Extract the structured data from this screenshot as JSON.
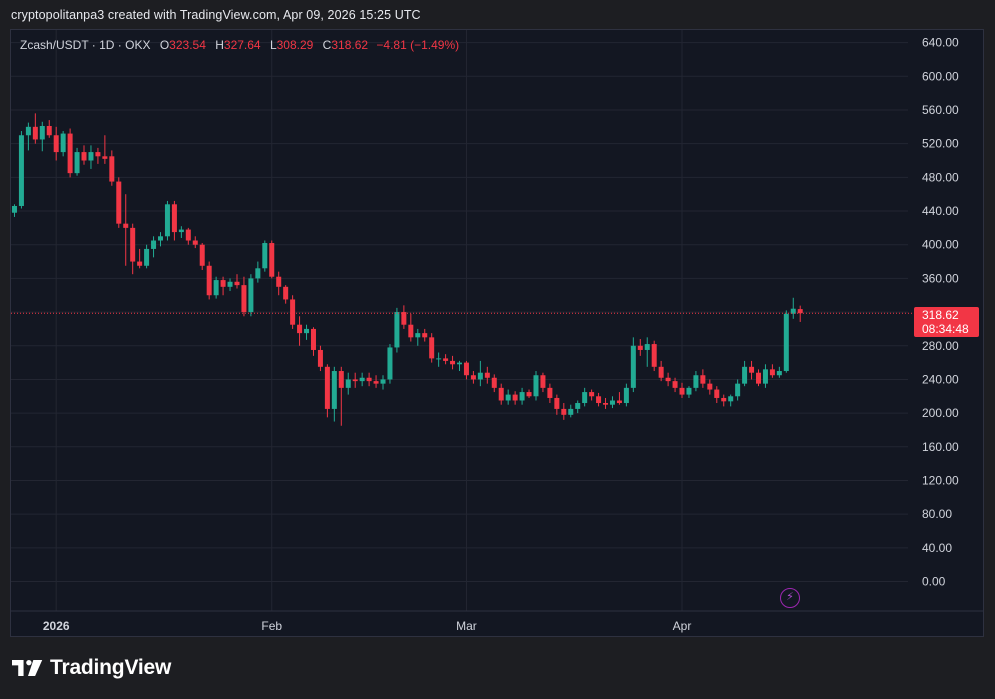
{
  "header": {
    "text": "cryptopolitanpa3 created with TradingView.com, Apr 09, 2026 15:25 UTC"
  },
  "legend": {
    "symbol": "Zcash/USDT · 1D · OKX",
    "open_label": "O",
    "open": "323.54",
    "high_label": "H",
    "high": "327.64",
    "low_label": "L",
    "low": "308.29",
    "close_label": "C",
    "close": "318.62",
    "change": "−4.81 (−1.49%)"
  },
  "price_tag": {
    "price": "318.62",
    "countdown": "08:34:48"
  },
  "brand": {
    "name": "TradingView"
  },
  "colors": {
    "up": "#22ab94",
    "down": "#f23645",
    "grid": "#232632",
    "background": "#131722"
  },
  "icons": {
    "alert": "lightning-bolt-icon",
    "logo": "tradingview-logo-icon"
  },
  "chart_data": {
    "type": "candlestick",
    "title": "Zcash/USDT · 1D · OKX",
    "x_tick_labels": [
      "2026",
      "Feb",
      "Mar",
      "Apr"
    ],
    "x_tick_dates": [
      "2026-01-01",
      "2026-02-01",
      "2026-03-01",
      "2026-04-01"
    ],
    "y_ticks": [
      0,
      40,
      80,
      120,
      160,
      200,
      240,
      280,
      320,
      360,
      400,
      440,
      480,
      520,
      560,
      600,
      640
    ],
    "y_tick_labels": [
      "0.00",
      "40.00",
      "80.00",
      "120.00",
      "160.00",
      "200.00",
      "240.00",
      "280.00",
      "320.00",
      "360.00",
      "400.00",
      "440.00",
      "480.00",
      "520.00",
      "560.00",
      "600.00",
      "640.00"
    ],
    "ylim": [
      -35,
      655
    ],
    "xlim": [
      "2025-12-26",
      "2026-05-03"
    ],
    "last_price": 318.62,
    "grid": true,
    "candles": [
      {
        "date": "2025-12-26",
        "o": 438,
        "h": 448,
        "l": 433,
        "c": 446
      },
      {
        "date": "2025-12-27",
        "o": 446,
        "h": 535,
        "l": 443,
        "c": 530
      },
      {
        "date": "2025-12-28",
        "o": 530,
        "h": 545,
        "l": 512,
        "c": 540
      },
      {
        "date": "2025-12-29",
        "o": 540,
        "h": 556,
        "l": 520,
        "c": 525
      },
      {
        "date": "2025-12-30",
        "o": 525,
        "h": 546,
        "l": 511,
        "c": 541
      },
      {
        "date": "2025-12-31",
        "o": 541,
        "h": 548,
        "l": 527,
        "c": 530
      },
      {
        "date": "2026-01-01",
        "o": 530,
        "h": 540,
        "l": 500,
        "c": 510
      },
      {
        "date": "2026-01-02",
        "o": 510,
        "h": 535,
        "l": 505,
        "c": 532
      },
      {
        "date": "2026-01-03",
        "o": 532,
        "h": 538,
        "l": 480,
        "c": 485
      },
      {
        "date": "2026-01-04",
        "o": 485,
        "h": 515,
        "l": 482,
        "c": 510
      },
      {
        "date": "2026-01-05",
        "o": 510,
        "h": 518,
        "l": 495,
        "c": 500
      },
      {
        "date": "2026-01-06",
        "o": 500,
        "h": 518,
        "l": 490,
        "c": 510
      },
      {
        "date": "2026-01-07",
        "o": 510,
        "h": 515,
        "l": 496,
        "c": 505
      },
      {
        "date": "2026-01-08",
        "o": 505,
        "h": 530,
        "l": 496,
        "c": 502
      },
      {
        "date": "2026-01-09",
        "o": 505,
        "h": 512,
        "l": 470,
        "c": 475
      },
      {
        "date": "2026-01-10",
        "o": 475,
        "h": 480,
        "l": 420,
        "c": 425
      },
      {
        "date": "2026-01-11",
        "o": 425,
        "h": 460,
        "l": 375,
        "c": 420
      },
      {
        "date": "2026-01-12",
        "o": 420,
        "h": 425,
        "l": 365,
        "c": 380
      },
      {
        "date": "2026-01-13",
        "o": 380,
        "h": 395,
        "l": 372,
        "c": 375
      },
      {
        "date": "2026-01-14",
        "o": 375,
        "h": 400,
        "l": 372,
        "c": 395
      },
      {
        "date": "2026-01-15",
        "o": 395,
        "h": 410,
        "l": 385,
        "c": 405
      },
      {
        "date": "2026-01-16",
        "o": 405,
        "h": 415,
        "l": 398,
        "c": 410
      },
      {
        "date": "2026-01-17",
        "o": 410,
        "h": 452,
        "l": 405,
        "c": 448
      },
      {
        "date": "2026-01-18",
        "o": 448,
        "h": 452,
        "l": 405,
        "c": 415
      },
      {
        "date": "2026-01-19",
        "o": 415,
        "h": 422,
        "l": 408,
        "c": 418
      },
      {
        "date": "2026-01-20",
        "o": 418,
        "h": 420,
        "l": 400,
        "c": 405
      },
      {
        "date": "2026-01-21",
        "o": 405,
        "h": 410,
        "l": 396,
        "c": 400
      },
      {
        "date": "2026-01-22",
        "o": 400,
        "h": 402,
        "l": 370,
        "c": 375
      },
      {
        "date": "2026-01-23",
        "o": 375,
        "h": 380,
        "l": 335,
        "c": 340
      },
      {
        "date": "2026-01-24",
        "o": 340,
        "h": 362,
        "l": 336,
        "c": 358
      },
      {
        "date": "2026-01-25",
        "o": 358,
        "h": 362,
        "l": 340,
        "c": 350
      },
      {
        "date": "2026-01-26",
        "o": 350,
        "h": 360,
        "l": 345,
        "c": 356
      },
      {
        "date": "2026-01-27",
        "o": 356,
        "h": 365,
        "l": 348,
        "c": 352
      },
      {
        "date": "2026-01-28",
        "o": 352,
        "h": 362,
        "l": 315,
        "c": 320
      },
      {
        "date": "2026-01-29",
        "o": 320,
        "h": 365,
        "l": 315,
        "c": 360
      },
      {
        "date": "2026-01-30",
        "o": 360,
        "h": 380,
        "l": 355,
        "c": 372
      },
      {
        "date": "2026-01-31",
        "o": 372,
        "h": 405,
        "l": 368,
        "c": 402
      },
      {
        "date": "2026-02-01",
        "o": 402,
        "h": 405,
        "l": 360,
        "c": 362
      },
      {
        "date": "2026-02-02",
        "o": 362,
        "h": 368,
        "l": 340,
        "c": 350
      },
      {
        "date": "2026-02-03",
        "o": 350,
        "h": 352,
        "l": 330,
        "c": 335
      },
      {
        "date": "2026-02-04",
        "o": 335,
        "h": 340,
        "l": 300,
        "c": 305
      },
      {
        "date": "2026-02-05",
        "o": 305,
        "h": 315,
        "l": 280,
        "c": 295
      },
      {
        "date": "2026-02-06",
        "o": 295,
        "h": 305,
        "l": 287,
        "c": 300
      },
      {
        "date": "2026-02-07",
        "o": 300,
        "h": 302,
        "l": 268,
        "c": 275
      },
      {
        "date": "2026-02-08",
        "o": 275,
        "h": 280,
        "l": 250,
        "c": 255
      },
      {
        "date": "2026-02-09",
        "o": 255,
        "h": 258,
        "l": 195,
        "c": 205
      },
      {
        "date": "2026-02-10",
        "o": 205,
        "h": 255,
        "l": 190,
        "c": 250
      },
      {
        "date": "2026-02-11",
        "o": 250,
        "h": 255,
        "l": 185,
        "c": 230
      },
      {
        "date": "2026-02-12",
        "o": 230,
        "h": 248,
        "l": 222,
        "c": 240
      },
      {
        "date": "2026-02-13",
        "o": 240,
        "h": 248,
        "l": 230,
        "c": 238
      },
      {
        "date": "2026-02-14",
        "o": 238,
        "h": 248,
        "l": 232,
        "c": 242
      },
      {
        "date": "2026-02-15",
        "o": 242,
        "h": 248,
        "l": 232,
        "c": 238
      },
      {
        "date": "2026-02-16",
        "o": 238,
        "h": 245,
        "l": 230,
        "c": 235
      },
      {
        "date": "2026-02-17",
        "o": 235,
        "h": 245,
        "l": 228,
        "c": 240
      },
      {
        "date": "2026-02-18",
        "o": 240,
        "h": 282,
        "l": 235,
        "c": 278
      },
      {
        "date": "2026-02-19",
        "o": 278,
        "h": 325,
        "l": 272,
        "c": 320
      },
      {
        "date": "2026-02-20",
        "o": 320,
        "h": 328,
        "l": 300,
        "c": 305
      },
      {
        "date": "2026-02-21",
        "o": 305,
        "h": 318,
        "l": 285,
        "c": 290
      },
      {
        "date": "2026-02-22",
        "o": 290,
        "h": 300,
        "l": 280,
        "c": 295
      },
      {
        "date": "2026-02-23",
        "o": 295,
        "h": 300,
        "l": 285,
        "c": 290
      },
      {
        "date": "2026-02-24",
        "o": 290,
        "h": 295,
        "l": 260,
        "c": 265
      },
      {
        "date": "2026-02-25",
        "o": 265,
        "h": 272,
        "l": 255,
        "c": 265
      },
      {
        "date": "2026-02-26",
        "o": 265,
        "h": 270,
        "l": 258,
        "c": 262
      },
      {
        "date": "2026-02-27",
        "o": 262,
        "h": 268,
        "l": 252,
        "c": 258
      },
      {
        "date": "2026-02-28",
        "o": 258,
        "h": 262,
        "l": 250,
        "c": 260
      },
      {
        "date": "2026-03-01",
        "o": 260,
        "h": 262,
        "l": 240,
        "c": 245
      },
      {
        "date": "2026-03-02",
        "o": 245,
        "h": 250,
        "l": 235,
        "c": 240
      },
      {
        "date": "2026-03-03",
        "o": 240,
        "h": 262,
        "l": 232,
        "c": 248
      },
      {
        "date": "2026-03-04",
        "o": 248,
        "h": 255,
        "l": 235,
        "c": 242
      },
      {
        "date": "2026-03-05",
        "o": 242,
        "h": 246,
        "l": 225,
        "c": 230
      },
      {
        "date": "2026-03-06",
        "o": 230,
        "h": 235,
        "l": 210,
        "c": 215
      },
      {
        "date": "2026-03-07",
        "o": 215,
        "h": 228,
        "l": 210,
        "c": 222
      },
      {
        "date": "2026-03-08",
        "o": 222,
        "h": 226,
        "l": 210,
        "c": 215
      },
      {
        "date": "2026-03-09",
        "o": 215,
        "h": 230,
        "l": 210,
        "c": 225
      },
      {
        "date": "2026-03-10",
        "o": 225,
        "h": 228,
        "l": 218,
        "c": 220
      },
      {
        "date": "2026-03-11",
        "o": 220,
        "h": 250,
        "l": 215,
        "c": 245
      },
      {
        "date": "2026-03-12",
        "o": 245,
        "h": 248,
        "l": 225,
        "c": 230
      },
      {
        "date": "2026-03-13",
        "o": 230,
        "h": 235,
        "l": 212,
        "c": 218
      },
      {
        "date": "2026-03-14",
        "o": 218,
        "h": 222,
        "l": 198,
        "c": 205
      },
      {
        "date": "2026-03-15",
        "o": 205,
        "h": 212,
        "l": 192,
        "c": 198
      },
      {
        "date": "2026-03-16",
        "o": 198,
        "h": 210,
        "l": 195,
        "c": 205
      },
      {
        "date": "2026-03-17",
        "o": 205,
        "h": 215,
        "l": 200,
        "c": 212
      },
      {
        "date": "2026-03-18",
        "o": 212,
        "h": 230,
        "l": 208,
        "c": 225
      },
      {
        "date": "2026-03-19",
        "o": 225,
        "h": 228,
        "l": 215,
        "c": 220
      },
      {
        "date": "2026-03-20",
        "o": 220,
        "h": 224,
        "l": 208,
        "c": 212
      },
      {
        "date": "2026-03-21",
        "o": 212,
        "h": 218,
        "l": 205,
        "c": 210
      },
      {
        "date": "2026-03-22",
        "o": 210,
        "h": 220,
        "l": 206,
        "c": 215
      },
      {
        "date": "2026-03-23",
        "o": 215,
        "h": 225,
        "l": 210,
        "c": 212
      },
      {
        "date": "2026-03-24",
        "o": 212,
        "h": 235,
        "l": 208,
        "c": 230
      },
      {
        "date": "2026-03-25",
        "o": 230,
        "h": 290,
        "l": 225,
        "c": 280
      },
      {
        "date": "2026-03-26",
        "o": 280,
        "h": 288,
        "l": 268,
        "c": 275
      },
      {
        "date": "2026-03-27",
        "o": 275,
        "h": 290,
        "l": 255,
        "c": 282
      },
      {
        "date": "2026-03-28",
        "o": 282,
        "h": 286,
        "l": 250,
        "c": 255
      },
      {
        "date": "2026-03-29",
        "o": 255,
        "h": 262,
        "l": 238,
        "c": 242
      },
      {
        "date": "2026-03-30",
        "o": 242,
        "h": 248,
        "l": 232,
        "c": 238
      },
      {
        "date": "2026-03-31",
        "o": 238,
        "h": 242,
        "l": 225,
        "c": 230
      },
      {
        "date": "2026-04-01",
        "o": 230,
        "h": 236,
        "l": 218,
        "c": 222
      },
      {
        "date": "2026-04-02",
        "o": 222,
        "h": 232,
        "l": 218,
        "c": 230
      },
      {
        "date": "2026-04-03",
        "o": 230,
        "h": 250,
        "l": 226,
        "c": 245
      },
      {
        "date": "2026-04-04",
        "o": 245,
        "h": 252,
        "l": 230,
        "c": 235
      },
      {
        "date": "2026-04-05",
        "o": 235,
        "h": 240,
        "l": 222,
        "c": 228
      },
      {
        "date": "2026-04-06",
        "o": 228,
        "h": 232,
        "l": 212,
        "c": 218
      },
      {
        "date": "2026-04-07",
        "o": 218,
        "h": 222,
        "l": 208,
        "c": 214
      },
      {
        "date": "2026-04-08",
        "o": 214,
        "h": 222,
        "l": 208,
        "c": 220
      },
      {
        "date": "2026-04-09",
        "o": 220,
        "h": 240,
        "l": 215,
        "c": 235
      },
      {
        "date": "2026-04-10",
        "o": 235,
        "h": 262,
        "l": 232,
        "c": 255
      },
      {
        "date": "2026-04-11",
        "o": 255,
        "h": 262,
        "l": 240,
        "c": 248
      },
      {
        "date": "2026-04-12",
        "o": 248,
        "h": 252,
        "l": 232,
        "c": 235
      },
      {
        "date": "2026-04-13",
        "o": 235,
        "h": 258,
        "l": 230,
        "c": 252
      },
      {
        "date": "2026-04-14",
        "o": 252,
        "h": 258,
        "l": 242,
        "c": 245
      },
      {
        "date": "2026-04-15",
        "o": 245,
        "h": 255,
        "l": 242,
        "c": 250
      },
      {
        "date": "2026-04-16",
        "o": 250,
        "h": 322,
        "l": 248,
        "c": 318
      },
      {
        "date": "2026-04-17",
        "o": 318,
        "h": 337,
        "l": 312,
        "c": 324
      },
      {
        "date": "2026-04-18",
        "o": 323.54,
        "h": 327.64,
        "l": 308.29,
        "c": 318.62
      }
    ]
  }
}
